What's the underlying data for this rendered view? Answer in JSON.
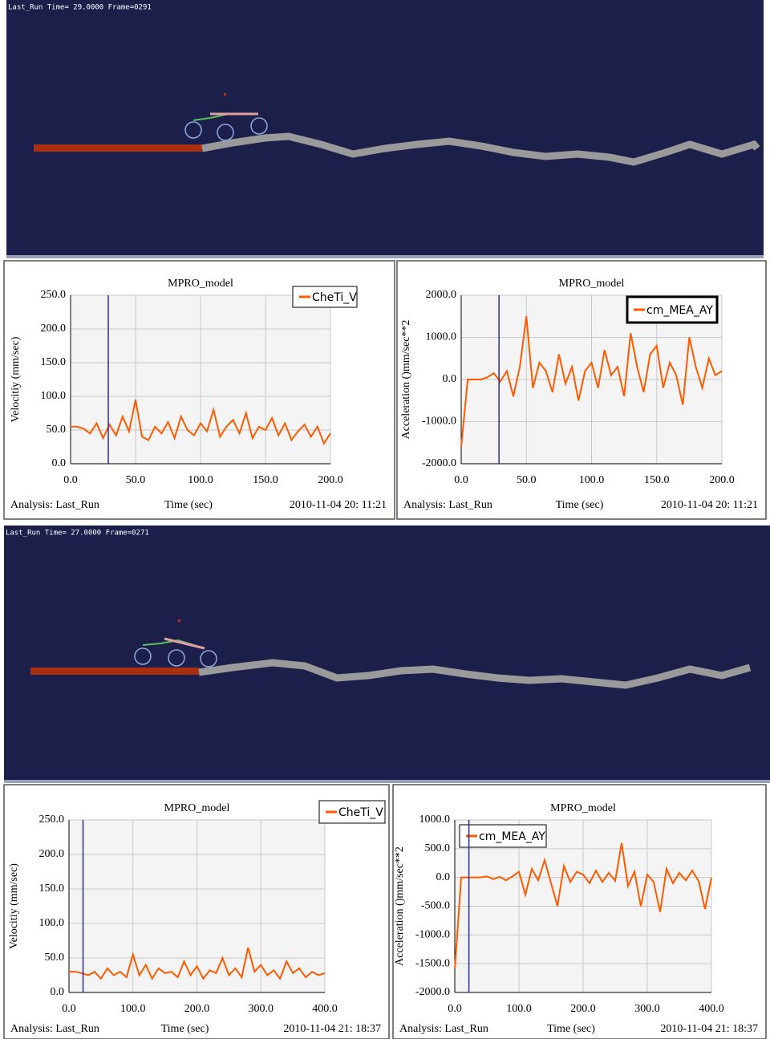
{
  "views": [
    {
      "status": "Last_Run  Time= 29.0000  Frame=0291"
    },
    {
      "status": "Last_Run  Time= 27.0000  Frame=0271"
    }
  ],
  "charts": [
    {
      "type": "line",
      "title": "MPRO_model",
      "y_label": "Velocitiy (mm/sec)",
      "x_label": "Time (sec)",
      "analysis": "Analysis: Last_Run",
      "date": "2010-11-04 20: 11:21",
      "xlim": [
        0,
        200
      ],
      "xticks": [
        {
          "value": 0,
          "label": "0.0"
        },
        {
          "value": 50,
          "label": "50.0"
        },
        {
          "value": 100,
          "label": "100.0"
        },
        {
          "value": 150,
          "label": "150.0"
        },
        {
          "value": 200,
          "label": "200.0"
        }
      ],
      "ylim": [
        0,
        250
      ],
      "yticks": [
        {
          "value": 0,
          "label": "0.0"
        },
        {
          "value": 50,
          "label": "50.0"
        },
        {
          "value": 100,
          "label": "100.0"
        },
        {
          "value": 150,
          "label": "150.0"
        },
        {
          "value": 200,
          "label": "200.0"
        },
        {
          "value": 250,
          "label": "250.0"
        }
      ],
      "cursor": 29,
      "grid": true,
      "series": [
        {
          "name": "CheTi_V",
          "color": "#ff5a00",
          "x": [
            0,
            5,
            10,
            15,
            20,
            25,
            30,
            35,
            40,
            45,
            50,
            55,
            60,
            65,
            70,
            75,
            80,
            85,
            90,
            95,
            100,
            105,
            110,
            115,
            120,
            125,
            130,
            135,
            140,
            145,
            150,
            155,
            160,
            165,
            170,
            175,
            180,
            185,
            190,
            195,
            200
          ],
          "values": [
            55,
            55,
            52,
            45,
            60,
            38,
            58,
            42,
            70,
            48,
            95,
            40,
            35,
            55,
            45,
            62,
            38,
            70,
            50,
            42,
            60,
            48,
            80,
            40,
            55,
            65,
            45,
            75,
            38,
            55,
            50,
            68,
            42,
            60,
            35,
            48,
            58,
            40,
            55,
            30,
            45
          ]
        }
      ]
    },
    {
      "type": "line",
      "title": "MPRO_model",
      "y_label": "Acceleration ()mm/sec**2",
      "x_label": "Time (sec)",
      "analysis": "Analysis: Last_Run",
      "date": "2010-11-04 20: 11:21",
      "xlim": [
        0,
        200
      ],
      "xticks": [
        {
          "value": 0,
          "label": "0.0"
        },
        {
          "value": 50,
          "label": "50.0"
        },
        {
          "value": 100,
          "label": "100.0"
        },
        {
          "value": 150,
          "label": "150.0"
        },
        {
          "value": 200,
          "label": "200.0"
        }
      ],
      "ylim": [
        -2000,
        2000
      ],
      "yticks": [
        {
          "value": -2000,
          "label": "-2000.0"
        },
        {
          "value": -1000,
          "label": "-1000.0"
        },
        {
          "value": 0,
          "label": "0.0"
        },
        {
          "value": 1000,
          "label": "1000.0"
        },
        {
          "value": 2000,
          "label": "2000.0"
        }
      ],
      "cursor": 29,
      "grid": true,
      "series": [
        {
          "name": "cm_MEA_AY",
          "color": "#ff5a00",
          "x": [
            0,
            5,
            10,
            15,
            20,
            25,
            30,
            35,
            40,
            45,
            50,
            55,
            60,
            65,
            70,
            75,
            80,
            85,
            90,
            95,
            100,
            105,
            110,
            115,
            120,
            125,
            130,
            135,
            140,
            145,
            150,
            155,
            160,
            165,
            170,
            175,
            180,
            185,
            190,
            195,
            200
          ],
          "values": [
            -1600,
            0,
            0,
            0,
            50,
            150,
            -50,
            200,
            -400,
            300,
            1500,
            -200,
            400,
            200,
            -300,
            600,
            -100,
            300,
            -500,
            200,
            400,
            -200,
            700,
            100,
            300,
            -400,
            1100,
            300,
            -300,
            600,
            800,
            -200,
            400,
            100,
            -600,
            1000,
            300,
            -200,
            500,
            100,
            200
          ]
        }
      ]
    },
    {
      "type": "line",
      "title": "MPRO_model",
      "y_label": "Velocitiy (mm/sec)",
      "x_label": "Time (sec)",
      "analysis": "Analysis: Last_Run",
      "date": "2010-11-04 21: 18:37",
      "xlim": [
        0,
        400
      ],
      "xticks": [
        {
          "value": 0,
          "label": "0.0"
        },
        {
          "value": 100,
          "label": "100.0"
        },
        {
          "value": 200,
          "label": "200.0"
        },
        {
          "value": 300,
          "label": "300.0"
        },
        {
          "value": 400,
          "label": "400.0"
        }
      ],
      "ylim": [
        0,
        250
      ],
      "yticks": [
        {
          "value": 0,
          "label": "0.0"
        },
        {
          "value": 50,
          "label": "50.0"
        },
        {
          "value": 100,
          "label": "100.0"
        },
        {
          "value": 150,
          "label": "150.0"
        },
        {
          "value": 200,
          "label": "200.0"
        },
        {
          "value": 250,
          "label": "250.0"
        }
      ],
      "cursor": 22,
      "grid": true,
      "series": [
        {
          "name": "CheTi_V",
          "color": "#ff5a00",
          "x": [
            0,
            10,
            20,
            30,
            40,
            50,
            60,
            70,
            80,
            90,
            100,
            110,
            120,
            130,
            140,
            150,
            160,
            170,
            180,
            190,
            200,
            210,
            220,
            230,
            240,
            250,
            260,
            270,
            280,
            290,
            300,
            310,
            320,
            330,
            340,
            350,
            360,
            370,
            380,
            390,
            400
          ],
          "values": [
            30,
            30,
            28,
            25,
            30,
            20,
            35,
            25,
            30,
            22,
            55,
            25,
            40,
            20,
            35,
            28,
            30,
            22,
            45,
            25,
            38,
            20,
            32,
            28,
            50,
            25,
            35,
            22,
            65,
            30,
            40,
            25,
            32,
            20,
            45,
            28,
            35,
            22,
            30,
            25,
            28
          ]
        }
      ]
    },
    {
      "type": "line",
      "title": "MPRO_model",
      "y_label": "Acceleration ()mm/sec**2",
      "x_label": "Time (sec)",
      "analysis": "Analysis: Last_Run",
      "date": "2010-11-04 21: 18:37",
      "xlim": [
        0,
        400
      ],
      "xticks": [
        {
          "value": 0,
          "label": "0.0"
        },
        {
          "value": 100,
          "label": "100.0"
        },
        {
          "value": 200,
          "label": "200.0"
        },
        {
          "value": 300,
          "label": "300.0"
        },
        {
          "value": 400,
          "label": "400.0"
        }
      ],
      "ylim": [
        -2000,
        1000
      ],
      "yticks": [
        {
          "value": -2000,
          "label": "-2000.0"
        },
        {
          "value": -1500,
          "label": "-1500.0"
        },
        {
          "value": -1000,
          "label": "-1000.0"
        },
        {
          "value": -500,
          "label": "-500.0"
        },
        {
          "value": 0,
          "label": "0.0"
        },
        {
          "value": 500,
          "label": "500.0"
        },
        {
          "value": 1000,
          "label": "1000.0"
        }
      ],
      "cursor": 22,
      "grid": true,
      "series": [
        {
          "name": "cm_MEA_AY",
          "color": "#ff5a00",
          "x": [
            0,
            10,
            20,
            30,
            40,
            50,
            60,
            70,
            80,
            90,
            100,
            110,
            120,
            130,
            140,
            150,
            160,
            170,
            180,
            190,
            200,
            210,
            220,
            230,
            240,
            250,
            260,
            270,
            280,
            290,
            300,
            310,
            320,
            330,
            340,
            350,
            360,
            370,
            380,
            390,
            400
          ],
          "values": [
            -1600,
            0,
            0,
            0,
            0,
            20,
            -30,
            10,
            -50,
            20,
            100,
            -300,
            150,
            -50,
            300,
            -100,
            -500,
            200,
            -80,
            100,
            50,
            -100,
            120,
            -80,
            80,
            -60,
            600,
            -150,
            100,
            -500,
            50,
            -80,
            -600,
            150,
            -100,
            80,
            -50,
            120,
            -60,
            -550,
            0
          ]
        }
      ]
    }
  ]
}
